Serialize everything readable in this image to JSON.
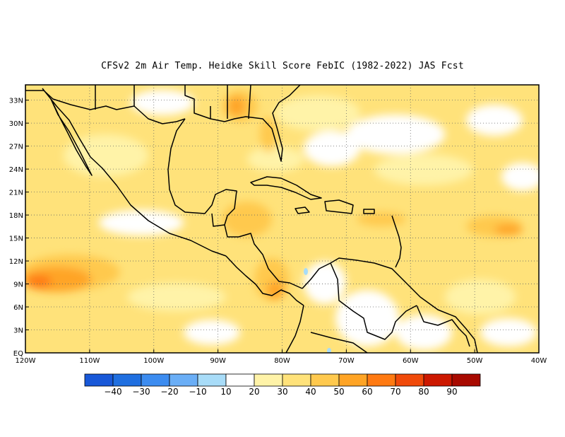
{
  "title": "CFSv2  2m Air Temp. Heidke Skill Score FebIC (1982-2022) JAS Fcst",
  "map": {
    "lat_labels": [
      "33N",
      "30N",
      "27N",
      "24N",
      "21N",
      "18N",
      "15N",
      "12N",
      "9N",
      "6N",
      "3N",
      "EQ"
    ],
    "lat_values": [
      33,
      30,
      27,
      24,
      21,
      18,
      15,
      12,
      9,
      6,
      3,
      0
    ],
    "lon_labels": [
      "120W",
      "110W",
      "100W",
      "90W",
      "80W",
      "70W",
      "60W",
      "50W",
      "40W"
    ],
    "lon_values": [
      -120,
      -110,
      -100,
      -90,
      -80,
      -70,
      -60,
      -50,
      -40
    ],
    "lat_range": [
      0,
      35
    ],
    "lon_range": [
      -120,
      -40
    ],
    "gridlines": "dotted"
  },
  "colorbar": {
    "labels": [
      "-40",
      "-30",
      "-20",
      "-10",
      "10",
      "20",
      "30",
      "40",
      "50",
      "60",
      "70",
      "80",
      "90"
    ],
    "colors": [
      "#1f6fe0",
      "#3c8cf0",
      "#6aaef6",
      "#a8dcf8",
      "#ffffff",
      "#fff3a8",
      "#ffe27a",
      "#ffc94e",
      "#ffa425",
      "#ff7a12",
      "#f04a0a",
      "#cc1800",
      "#a80a00"
    ]
  }
}
